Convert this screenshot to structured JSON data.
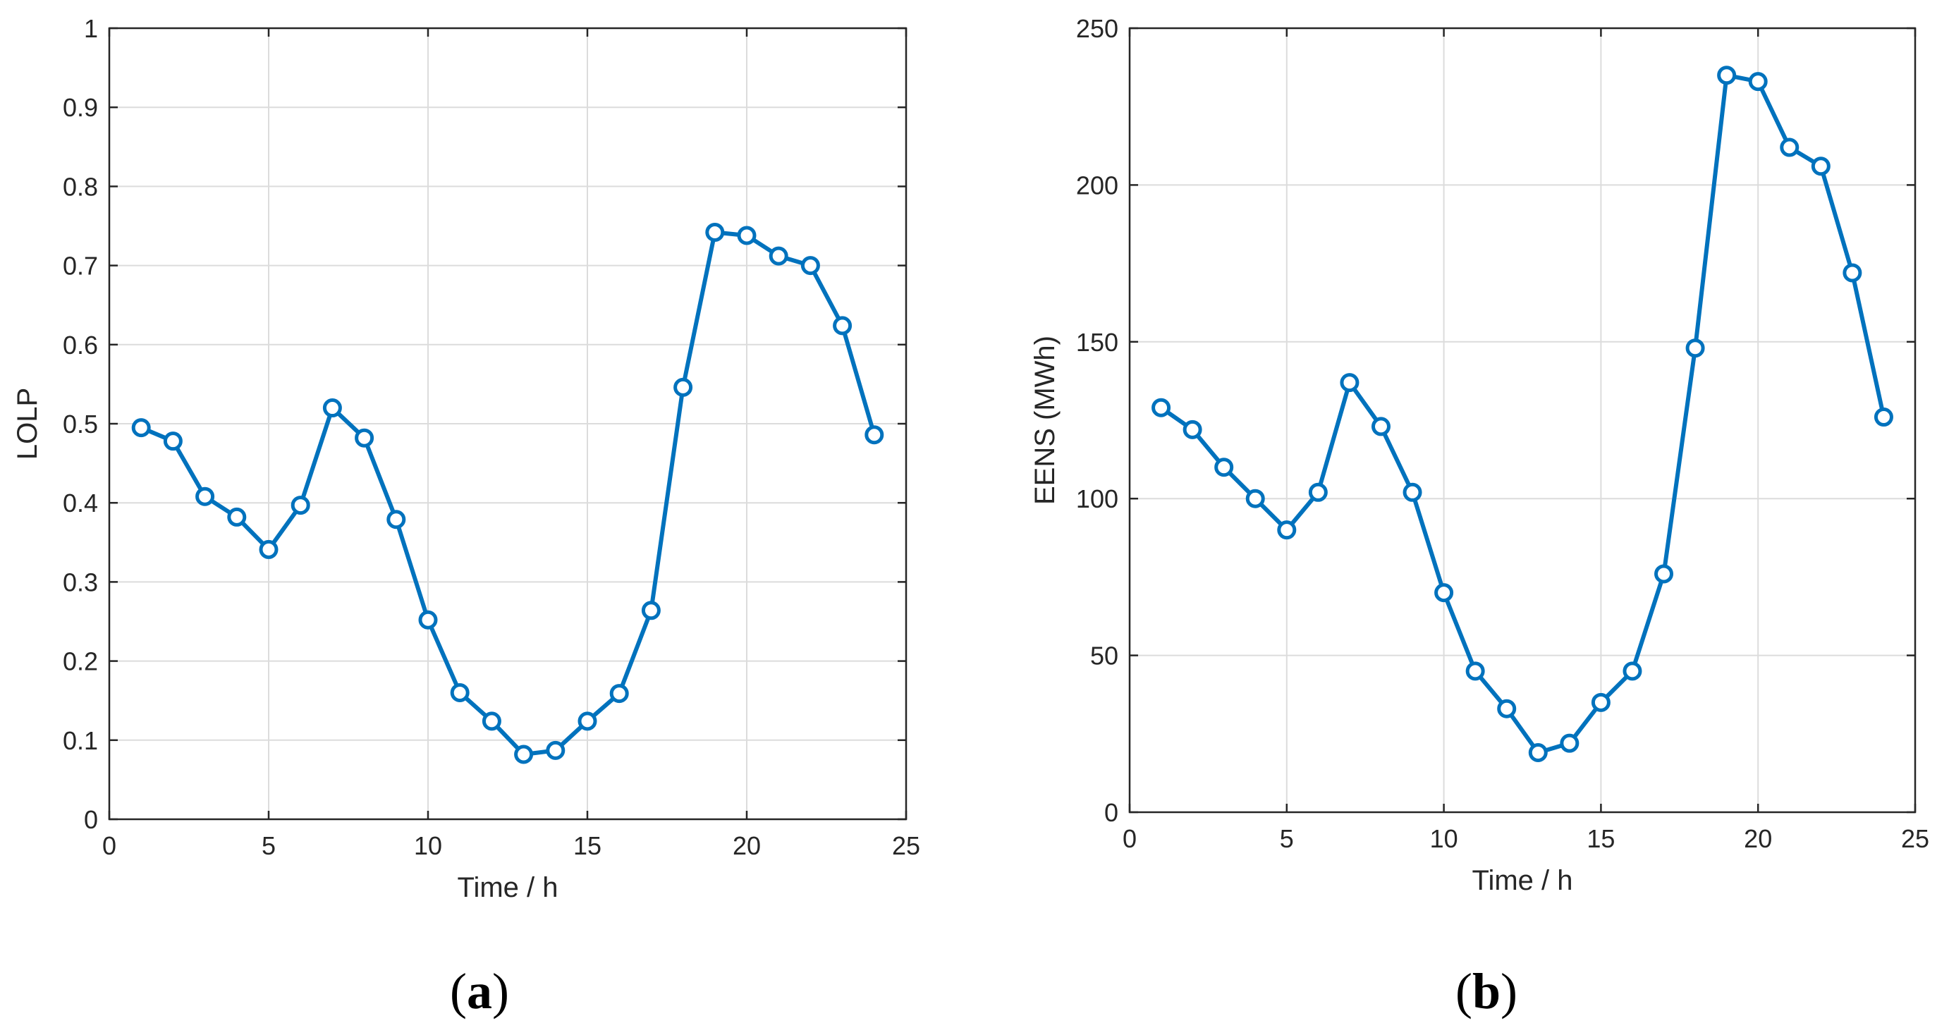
{
  "colors": {
    "line": "#0072BD",
    "grid": "#DCDCDC",
    "axis": "#262626",
    "background": "#FFFFFF"
  },
  "chart_data": [
    {
      "type": "line",
      "id": "a",
      "caption_open": "(",
      "caption_letter": "a",
      "caption_close": ")",
      "title": "",
      "xlabel": "Time / h",
      "ylabel": "LOLP",
      "xlim": [
        0,
        25
      ],
      "ylim": [
        0,
        1
      ],
      "xticks": [
        0,
        5,
        10,
        15,
        20,
        25
      ],
      "yticks": [
        0,
        0.1,
        0.2,
        0.3,
        0.4,
        0.5,
        0.6,
        0.7,
        0.8,
        0.9,
        1
      ],
      "xtick_labels": [
        "0",
        "5",
        "10",
        "15",
        "20",
        "25"
      ],
      "ytick_labels": [
        "0",
        "0.1",
        "0.2",
        "0.3",
        "0.4",
        "0.5",
        "0.6",
        "0.7",
        "0.8",
        "0.9",
        "1"
      ],
      "grid": true,
      "marker": "circle",
      "series": [
        {
          "x": [
            1,
            2,
            3,
            4,
            5,
            6,
            7,
            8,
            9,
            10,
            11,
            12,
            13,
            14,
            15,
            16,
            17,
            18,
            19,
            20,
            21,
            22,
            23,
            24
          ],
          "y": [
            0.495,
            0.478,
            0.408,
            0.382,
            0.341,
            0.397,
            0.52,
            0.482,
            0.379,
            0.252,
            0.16,
            0.124,
            0.082,
            0.087,
            0.124,
            0.159,
            0.264,
            0.546,
            0.742,
            0.738,
            0.712,
            0.7,
            0.624,
            0.486
          ]
        }
      ]
    },
    {
      "type": "line",
      "id": "b",
      "caption_open": "(",
      "caption_letter": "b",
      "caption_close": ")",
      "title": "",
      "xlabel": "Time / h",
      "ylabel": "EENS (MWh)",
      "xlim": [
        0,
        25
      ],
      "ylim": [
        0,
        250
      ],
      "xticks": [
        0,
        5,
        10,
        15,
        20,
        25
      ],
      "yticks": [
        0,
        50,
        100,
        150,
        200,
        250
      ],
      "xtick_labels": [
        "0",
        "5",
        "10",
        "15",
        "20",
        "25"
      ],
      "ytick_labels": [
        "0",
        "50",
        "100",
        "150",
        "200",
        "250"
      ],
      "grid": true,
      "marker": "circle",
      "series": [
        {
          "x": [
            1,
            2,
            3,
            4,
            5,
            6,
            7,
            8,
            9,
            10,
            11,
            12,
            13,
            14,
            15,
            16,
            17,
            18,
            19,
            20,
            21,
            22,
            23,
            24
          ],
          "y": [
            129,
            122,
            110,
            100,
            90,
            102,
            137,
            123,
            102,
            70,
            45,
            33,
            19,
            22,
            35,
            45,
            76,
            148,
            235,
            233,
            212,
            206,
            172,
            126
          ]
        }
      ]
    }
  ]
}
